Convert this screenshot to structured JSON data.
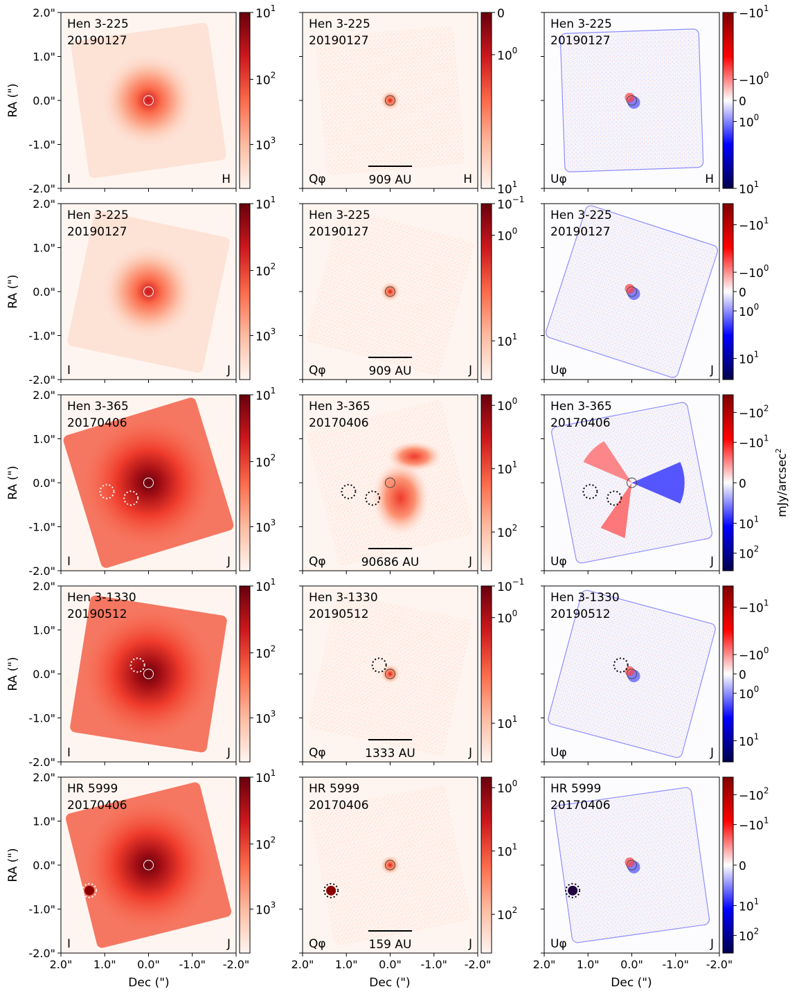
{
  "figure": {
    "units_label": "mJy/arcsec",
    "units_sup": "2",
    "ylabel": "RA (\")",
    "xlabel": "Dec (\")",
    "tick_values": [
      2.0,
      1.0,
      0.0,
      -1.0,
      -2.0
    ],
    "tick_labels": [
      "2.0\"",
      "1.0\"",
      "0.0\"",
      "-1.0\"",
      "-2.0\""
    ],
    "colors": {
      "reds_low": "#fff5f0",
      "reds_mid": "#fb6a4a",
      "reds_high": "#67000d",
      "seis_neg": "#00004c",
      "seis_mid_neg": "#0000ff",
      "seis_zero": "#ffffff",
      "seis_mid_pos": "#ff0000",
      "seis_pos": "#800000"
    }
  },
  "chart_data": [
    {
      "type": "heatmap",
      "target": "Hen 3-225",
      "date": "20190127",
      "band": "H",
      "scale_bar": "909 AU",
      "xlim": [
        2.0,
        -2.0
      ],
      "ylim": [
        -2.0,
        2.0
      ],
      "panels": [
        {
          "stokes": "I",
          "cmap": "reds",
          "ticks": [
            "10",
            "10",
            "10"
          ],
          "tick_exps": [
            "3",
            "2",
            "1"
          ],
          "tick_pos": [
            0.25,
            0.62,
            1.0
          ]
        },
        {
          "stokes": "Qφ",
          "cmap": "reds",
          "ticks": [
            "10",
            "10",
            "0"
          ],
          "tick_exps": [
            "1",
            "0",
            ""
          ],
          "tick_pos": [
            0.0,
            0.76,
            1.0
          ]
        },
        {
          "stokes": "Uφ",
          "cmap": "seismic",
          "ticks": [
            "10",
            "10",
            "0",
            "−10",
            "−10"
          ],
          "tick_exps": [
            "1",
            "0",
            "",
            "0",
            "1"
          ],
          "tick_pos": [
            0.0,
            0.38,
            0.5,
            0.62,
            1.0
          ]
        }
      ],
      "markers": []
    },
    {
      "type": "heatmap",
      "target": "Hen 3-225",
      "date": "20190127",
      "band": "J",
      "scale_bar": "909 AU",
      "xlim": [
        2.0,
        -2.0
      ],
      "ylim": [
        -2.0,
        2.0
      ],
      "panels": [
        {
          "stokes": "I",
          "cmap": "reds",
          "ticks": [
            "10",
            "10",
            "10"
          ],
          "tick_exps": [
            "3",
            "2",
            "1"
          ],
          "tick_pos": [
            0.25,
            0.62,
            1.0
          ]
        },
        {
          "stokes": "Qφ",
          "cmap": "reds",
          "ticks": [
            "10",
            "10",
            "10"
          ],
          "tick_exps": [
            "1",
            "0",
            "−1"
          ],
          "tick_pos": [
            0.22,
            0.82,
            1.0
          ]
        },
        {
          "stokes": "Uφ",
          "cmap": "seismic",
          "ticks": [
            "10",
            "10",
            "0",
            "−10",
            "−10"
          ],
          "tick_exps": [
            "1",
            "0",
            "",
            "0",
            "1"
          ],
          "tick_pos": [
            0.12,
            0.39,
            0.5,
            0.61,
            0.88
          ]
        }
      ],
      "markers": []
    },
    {
      "type": "heatmap",
      "target": "Hen 3-365",
      "date": "20170406",
      "band": "J",
      "scale_bar": "90686 AU",
      "xlim": [
        2.0,
        -2.0
      ],
      "ylim": [
        -2.0,
        2.0
      ],
      "panels": [
        {
          "stokes": "I",
          "cmap": "reds",
          "ticks": [
            "10",
            "10",
            "10"
          ],
          "tick_exps": [
            "3",
            "2",
            "1"
          ],
          "tick_pos": [
            0.25,
            0.62,
            1.0
          ]
        },
        {
          "stokes": "Qφ",
          "cmap": "reds",
          "ticks": [
            "10",
            "10",
            "10"
          ],
          "tick_exps": [
            "2",
            "1",
            "0"
          ],
          "tick_pos": [
            0.22,
            0.58,
            0.94
          ]
        },
        {
          "stokes": "Uφ",
          "cmap": "seismic",
          "ticks": [
            "10",
            "10",
            "0",
            "−10",
            "−10"
          ],
          "tick_exps": [
            "2",
            "1",
            "",
            "1",
            "2"
          ],
          "tick_pos": [
            0.1,
            0.27,
            0.5,
            0.73,
            0.9
          ]
        }
      ],
      "markers": [
        {
          "dec": 0.95,
          "ra": -0.2
        },
        {
          "dec": 0.4,
          "ra": -0.35
        }
      ]
    },
    {
      "type": "heatmap",
      "target": "Hen 3-1330",
      "date": "20190512",
      "band": "J",
      "scale_bar": "1333 AU",
      "xlim": [
        2.0,
        -2.0
      ],
      "ylim": [
        -2.0,
        2.0
      ],
      "panels": [
        {
          "stokes": "I",
          "cmap": "reds",
          "ticks": [
            "10",
            "10",
            "10"
          ],
          "tick_exps": [
            "3",
            "2",
            "1"
          ],
          "tick_pos": [
            0.25,
            0.62,
            1.0
          ]
        },
        {
          "stokes": "Qφ",
          "cmap": "reds",
          "ticks": [
            "10",
            "10",
            "10"
          ],
          "tick_exps": [
            "1",
            "0",
            "−1"
          ],
          "tick_pos": [
            0.22,
            0.82,
            1.0
          ]
        },
        {
          "stokes": "Uφ",
          "cmap": "seismic",
          "ticks": [
            "10",
            "10",
            "0",
            "−10",
            "−10"
          ],
          "tick_exps": [
            "1",
            "0",
            "",
            "0",
            "1"
          ],
          "tick_pos": [
            0.12,
            0.39,
            0.5,
            0.61,
            0.88
          ]
        }
      ],
      "markers": [
        {
          "dec": 0.25,
          "ra": 0.2
        }
      ]
    },
    {
      "type": "heatmap",
      "target": "HR 5999",
      "date": "20170406",
      "band": "J",
      "scale_bar": "159 AU",
      "xlim": [
        2.0,
        -2.0
      ],
      "ylim": [
        -2.0,
        2.0
      ],
      "panels": [
        {
          "stokes": "I",
          "cmap": "reds",
          "ticks": [
            "10",
            "10",
            "10"
          ],
          "tick_exps": [
            "3",
            "2",
            "1"
          ],
          "tick_pos": [
            0.25,
            0.62,
            1.0
          ]
        },
        {
          "stokes": "Qφ",
          "cmap": "reds",
          "ticks": [
            "10",
            "10",
            "10"
          ],
          "tick_exps": [
            "2",
            "1",
            "0"
          ],
          "tick_pos": [
            0.22,
            0.58,
            0.94
          ]
        },
        {
          "stokes": "Uφ",
          "cmap": "seismic",
          "ticks": [
            "10",
            "10",
            "0",
            "−10",
            "−10"
          ],
          "tick_exps": [
            "2",
            "1",
            "",
            "1",
            "2"
          ],
          "tick_pos": [
            0.1,
            0.27,
            0.5,
            0.73,
            0.9
          ]
        }
      ],
      "markers": [
        {
          "dec": 1.35,
          "ra": -0.58
        }
      ]
    }
  ]
}
